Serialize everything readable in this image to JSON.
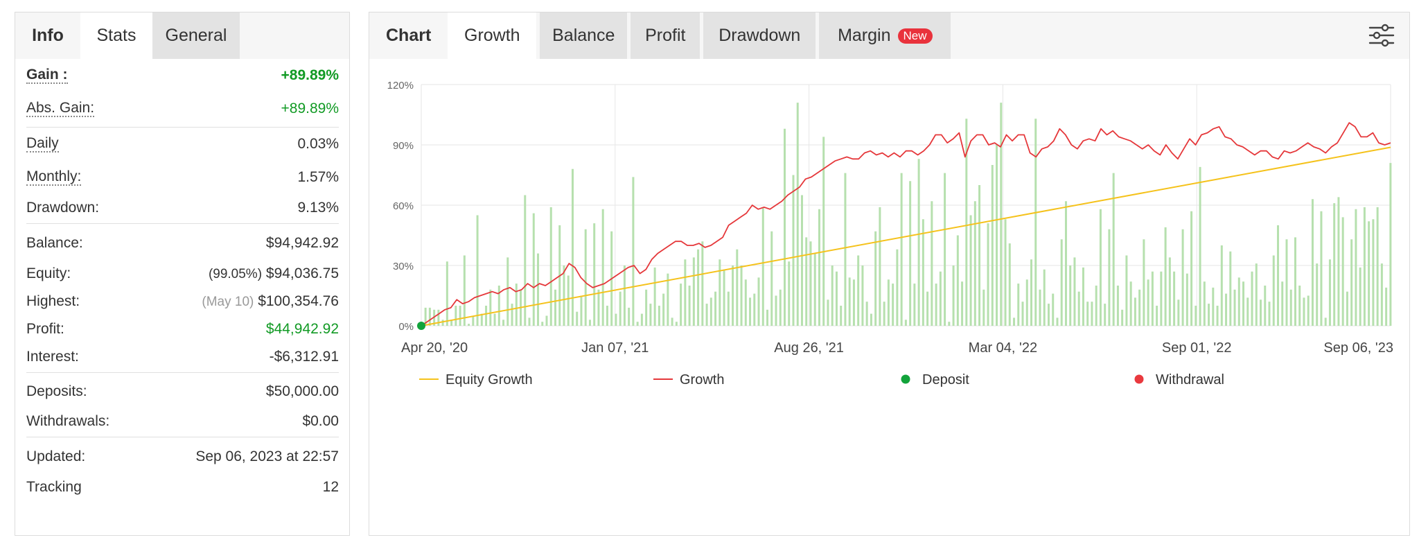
{
  "left_panel": {
    "tabs": {
      "label": "Info",
      "items": [
        "Stats",
        "General"
      ]
    },
    "gain": {
      "label": "Gain :",
      "value": "+89.89%"
    },
    "abs_gain": {
      "label": "Abs. Gain:",
      "value": "+89.89%"
    },
    "daily": {
      "label": "Daily",
      "value": "0.03%"
    },
    "monthly": {
      "label": "Monthly:",
      "value": "1.57%"
    },
    "drawdown": {
      "label": "Drawdown:",
      "value": "9.13%"
    },
    "balance": {
      "label": "Balance:",
      "value": "$94,942.92"
    },
    "equity": {
      "label": "Equity:",
      "note": "(99.05%)",
      "value": "$94,036.75"
    },
    "highest": {
      "label": "Highest:",
      "note": "(May 10)",
      "value": "$100,354.76"
    },
    "profit": {
      "label": "Profit:",
      "value": "$44,942.92"
    },
    "interest": {
      "label": "Interest:",
      "value": "-$6,312.91"
    },
    "deposits": {
      "label": "Deposits:",
      "value": "$50,000.00"
    },
    "withdrawals": {
      "label": "Withdrawals:",
      "value": "$0.00"
    },
    "updated": {
      "label": "Updated:",
      "value": "Sep 06, 2023 at 22:57"
    },
    "tracking": {
      "label": "Tracking",
      "value": "12"
    }
  },
  "right_panel": {
    "tabs": {
      "label": "Chart",
      "items": [
        "Growth",
        "Balance",
        "Profit",
        "Drawdown",
        "Margin"
      ],
      "active": "Growth",
      "margin_badge": "New"
    },
    "settings_icon": "sliders-icon"
  },
  "colors": {
    "growth_line": "#e5373a",
    "equity_line": "#f5c21b",
    "bars": "#b6e0ae",
    "deposit": "#12a33b",
    "withdrawal": "#e9393e",
    "gain_value": "#119a24"
  },
  "chart_data": {
    "type": "line",
    "y_ticks": [
      "0%",
      "30%",
      "60%",
      "90%",
      "120%"
    ],
    "ylim": [
      0,
      120
    ],
    "x_ticks": [
      "Apr 20, '20",
      "Jan 07, '21",
      "Aug 26, '21",
      "Mar 04, '22",
      "Sep 01, '22",
      "Sep 06, '23"
    ],
    "legend": [
      "Equity Growth",
      "Growth",
      "Deposit",
      "Withdrawal"
    ],
    "legend_position": "bottom",
    "grid": true,
    "series": [
      {
        "name": "Equity Growth",
        "start": 0,
        "end": 88.8
      },
      {
        "name": "Growth",
        "values": [
          0,
          2,
          4,
          6,
          8,
          9,
          13,
          11,
          12,
          14,
          15,
          16,
          17,
          16,
          18,
          19,
          17,
          18,
          21,
          19,
          21,
          20,
          22,
          24,
          26,
          31,
          29,
          24,
          21,
          19,
          20,
          21,
          23,
          25,
          27,
          29,
          30,
          26,
          28,
          33,
          36,
          38,
          40,
          42,
          42,
          40,
          40,
          41,
          39,
          40,
          42,
          44,
          50,
          52,
          54,
          56,
          60,
          58,
          59,
          58,
          60,
          62,
          65,
          67,
          69,
          73,
          74,
          76,
          78,
          80,
          82,
          83,
          84,
          83,
          83,
          86,
          87,
          85,
          86,
          84,
          86,
          84,
          87,
          87,
          85,
          87,
          90,
          95,
          95,
          91,
          93,
          96,
          84,
          92,
          95,
          95,
          90,
          91,
          89,
          95,
          92,
          95,
          95,
          86,
          84,
          88,
          89,
          92,
          98,
          95,
          90,
          88,
          92,
          93,
          92,
          98,
          95,
          97,
          94,
          93,
          92,
          90,
          88,
          90,
          87,
          85,
          90,
          86,
          83,
          88,
          93,
          90,
          95,
          96,
          98,
          99,
          94,
          93,
          90,
          89,
          87,
          85,
          87,
          87,
          84,
          83,
          87,
          86,
          87,
          89,
          91,
          89,
          88,
          86,
          89,
          91,
          96,
          101,
          99,
          94,
          94,
          96,
          91,
          90,
          91
        ]
      },
      {
        "name": "Daily bars",
        "values": [
          9,
          9,
          8,
          8,
          3,
          32,
          3,
          10,
          10,
          35,
          1,
          5,
          55,
          6,
          10,
          18,
          6,
          20,
          3,
          34,
          11,
          21,
          18,
          65,
          4,
          56,
          36,
          2,
          5,
          59,
          18,
          50,
          30,
          25,
          78,
          7,
          15,
          48,
          3,
          51,
          18,
          58,
          10,
          47,
          6,
          17,
          30,
          9,
          74,
          2,
          6,
          18,
          11,
          29,
          10,
          16,
          26,
          4,
          2,
          21,
          33,
          20,
          34,
          38,
          42,
          11,
          14,
          17,
          33,
          28,
          17,
          30,
          38,
          30,
          23,
          14,
          16,
          24,
          59,
          8,
          47,
          15,
          18,
          98,
          32,
          75,
          111,
          65,
          44,
          42,
          36,
          58,
          94,
          13,
          30,
          27,
          10,
          76,
          24,
          23,
          35,
          30,
          12,
          6,
          47,
          59,
          12,
          23,
          21,
          38,
          76,
          3,
          72,
          21,
          83,
          53,
          17,
          62,
          21,
          27,
          76,
          2,
          30,
          45,
          22,
          103,
          55,
          62,
          70,
          18,
          51,
          80,
          90,
          111,
          53,
          41,
          4,
          21,
          12,
          23,
          33,
          103,
          18,
          28,
          11,
          16,
          4,
          43,
          62,
          30,
          34,
          17,
          29,
          12,
          12,
          20,
          58,
          11,
          48,
          76,
          20,
          8,
          35,
          22,
          14,
          18,
          43,
          23,
          27,
          10,
          27,
          49,
          34,
          27,
          13,
          48,
          26,
          57,
          10,
          79,
          22,
          11,
          19,
          10,
          40,
          16,
          37,
          18,
          24,
          22,
          14,
          27,
          31,
          13,
          20,
          12,
          35,
          50,
          22,
          43,
          18,
          44,
          20,
          14,
          15,
          63,
          31,
          57,
          4,
          33,
          61,
          64,
          54,
          17,
          43,
          58,
          29,
          59,
          52,
          53,
          59,
          31,
          19,
          81
        ]
      },
      {
        "name": "Deposit",
        "points": [
          {
            "x": "Apr 20, '20",
            "y": 0
          }
        ]
      }
    ]
  }
}
